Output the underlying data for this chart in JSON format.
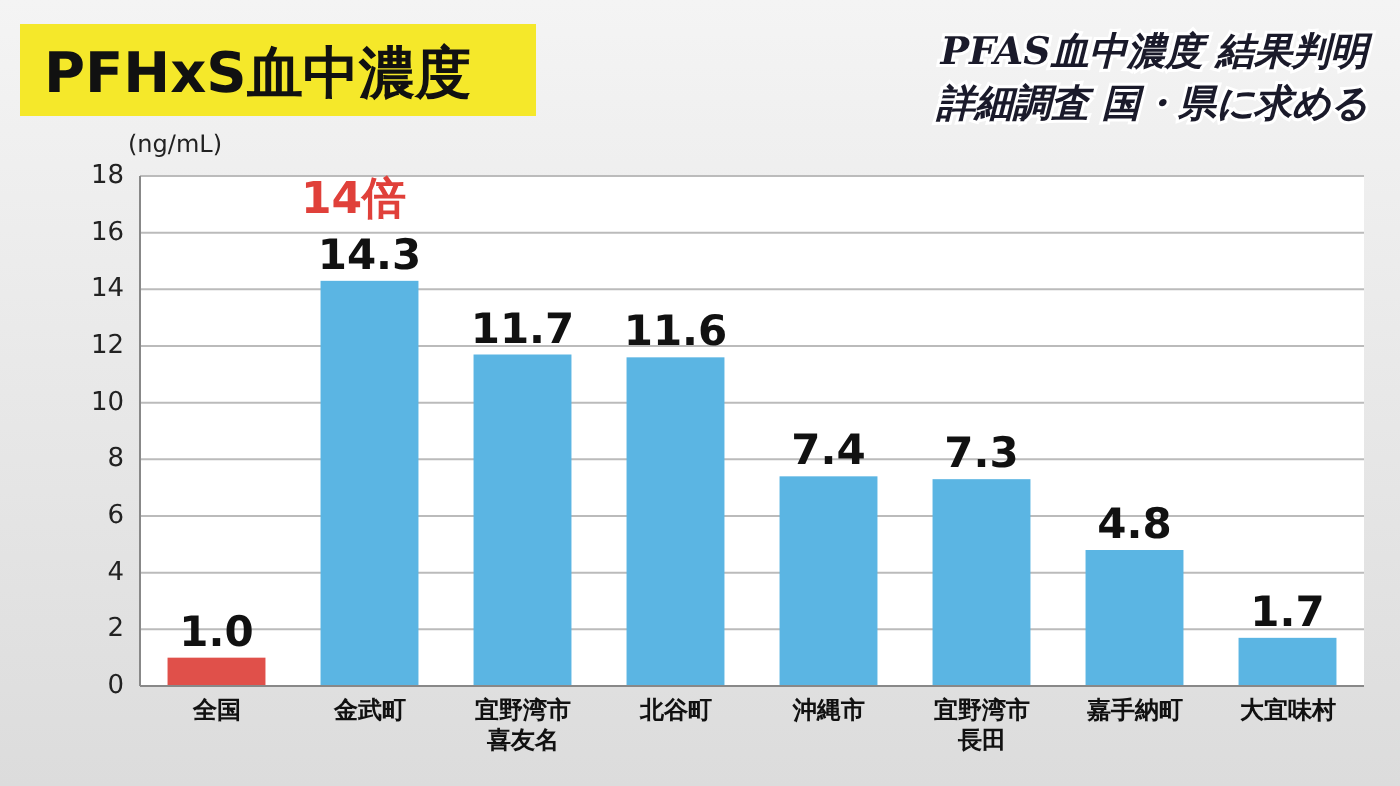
{
  "chart_data": {
    "type": "bar",
    "title": "PFHxS血中濃度",
    "subtitle": "PFAS血中濃度 結果判明",
    "ylabel": "(ng/mL)",
    "categories": [
      "全国",
      "金武町",
      "宜野湾市喜友名",
      "北谷町",
      "沖縄市",
      "宜野湾市長田",
      "嘉手納町",
      "大宜味村"
    ],
    "values": [
      1.0,
      14.3,
      11.7,
      11.6,
      7.4,
      7.3,
      4.8,
      1.7
    ],
    "colors": [
      "#e0504a",
      "#5bb5e3",
      "#5bb5e3",
      "#5bb5e3",
      "#5bb5e3",
      "#5bb5e3",
      "#5bb5e3",
      "#5bb5e3"
    ],
    "value_labels": [
      "1.0",
      "14.3",
      "11.7",
      "11.6",
      "7.4",
      "7.3",
      "4.8",
      "1.7"
    ],
    "ylim": [
      0,
      18
    ],
    "yticks": [
      0,
      2,
      4,
      6,
      8,
      10,
      12,
      14,
      16,
      18
    ],
    "grid": "y",
    "annotations": [
      "詳細調査 国・県に求める",
      "14倍"
    ]
  }
}
